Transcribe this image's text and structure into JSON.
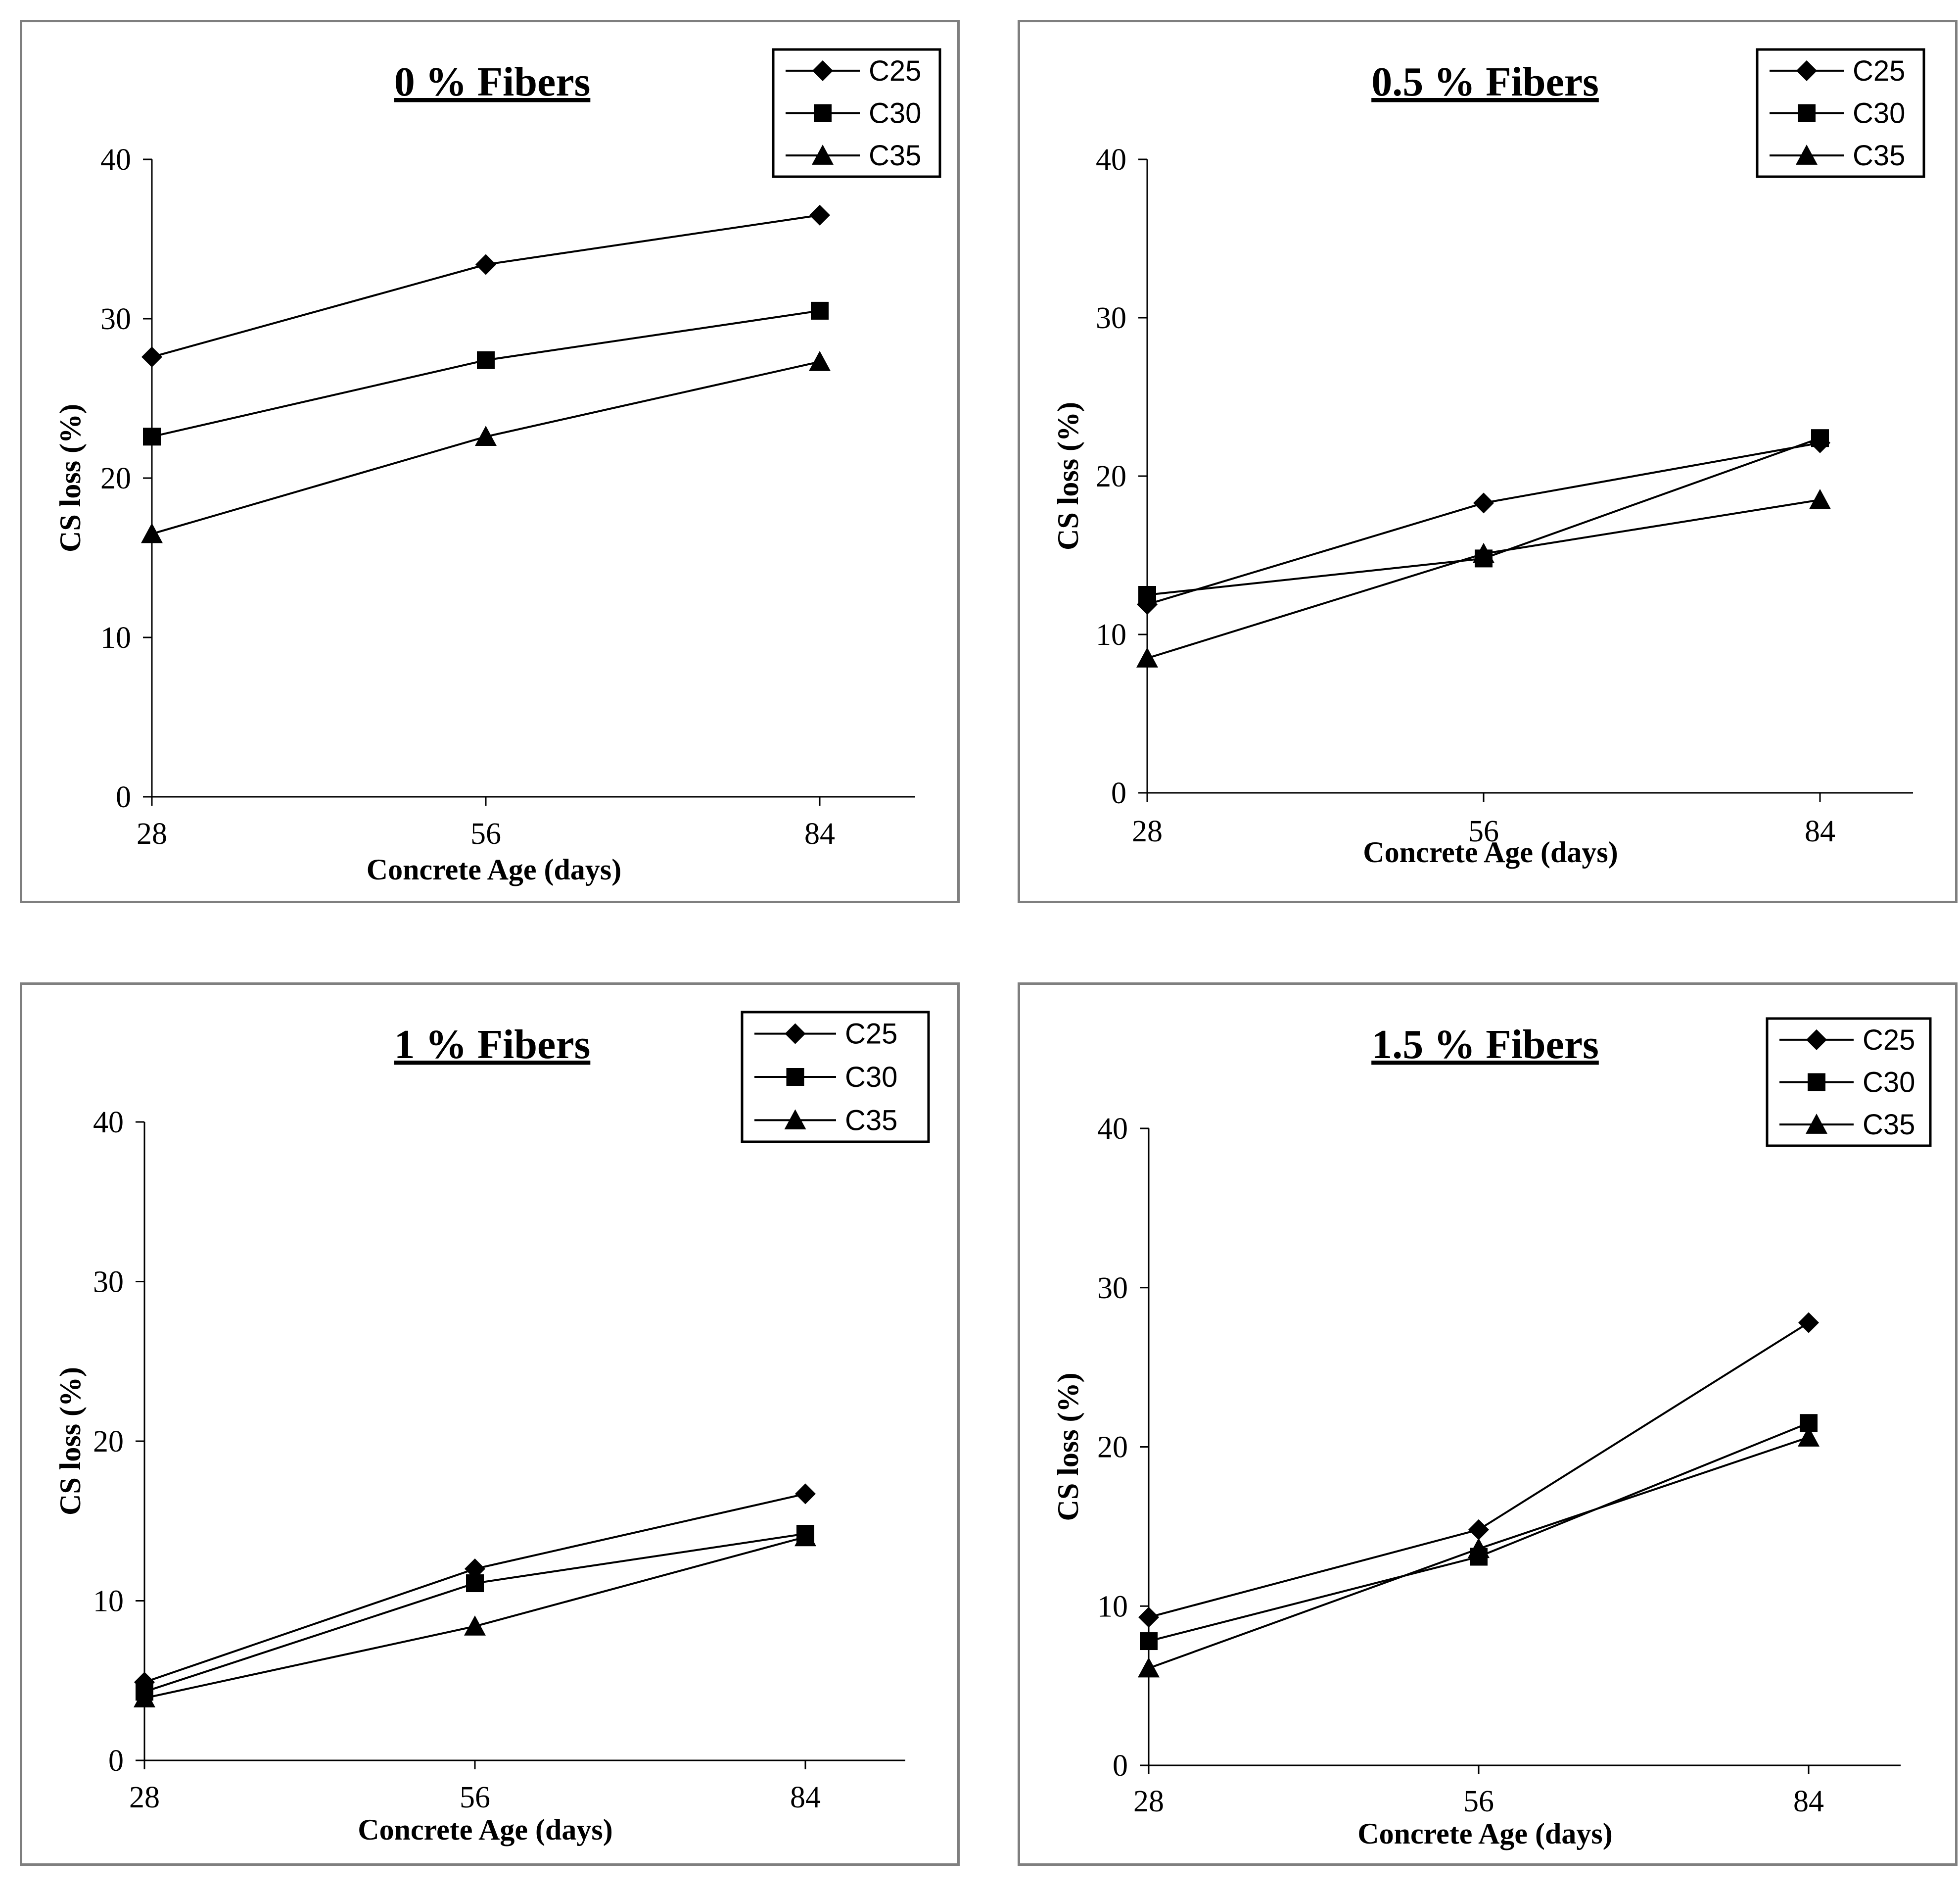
{
  "chart_data": [
    {
      "type": "line",
      "title": "0 % Fibers",
      "xlabel": "Concrete Age (days)",
      "ylabel": "CS loss (%)",
      "x": [
        28,
        56,
        84
      ],
      "xticks": [
        28,
        56,
        84
      ],
      "yticks": [
        0,
        10,
        20,
        30,
        40
      ],
      "ylim": [
        0,
        40
      ],
      "legend_position": "top-right",
      "series": [
        {
          "name": "C25",
          "marker": "diamond",
          "values": [
            27.6,
            33.4,
            36.5
          ]
        },
        {
          "name": "C30",
          "marker": "square",
          "values": [
            22.6,
            27.4,
            30.5
          ]
        },
        {
          "name": "C35",
          "marker": "triangle",
          "values": [
            16.5,
            22.6,
            27.3
          ]
        }
      ]
    },
    {
      "type": "line",
      "title": "0.5 % Fibers",
      "xlabel": "Concrete Age (days)",
      "ylabel": "CS loss (%)",
      "x": [
        28,
        56,
        84
      ],
      "xticks": [
        28,
        56,
        84
      ],
      "yticks": [
        0,
        10,
        20,
        30,
        40
      ],
      "ylim": [
        0,
        40
      ],
      "legend_position": "top-right",
      "series": [
        {
          "name": "C25",
          "marker": "diamond",
          "values": [
            11.9,
            18.3,
            22.1
          ]
        },
        {
          "name": "C30",
          "marker": "square",
          "values": [
            12.5,
            14.8,
            22.4
          ]
        },
        {
          "name": "C35",
          "marker": "triangle",
          "values": [
            8.5,
            15.1,
            18.5
          ]
        }
      ]
    },
    {
      "type": "line",
      "title": "1 % Fibers",
      "xlabel": "Concrete Age (days)",
      "ylabel": "CS loss (%)",
      "x": [
        28,
        56,
        84
      ],
      "xticks": [
        28,
        56,
        84
      ],
      "yticks": [
        0,
        10,
        20,
        30,
        40
      ],
      "ylim": [
        0,
        40
      ],
      "legend_position": "top-right",
      "series": [
        {
          "name": "C25",
          "marker": "diamond",
          "values": [
            4.9,
            12.0,
            16.7
          ]
        },
        {
          "name": "C30",
          "marker": "square",
          "values": [
            4.3,
            11.1,
            14.2
          ]
        },
        {
          "name": "C35",
          "marker": "triangle",
          "values": [
            3.9,
            8.4,
            14.0
          ]
        }
      ]
    },
    {
      "type": "line",
      "title": "1.5 % Fibers",
      "xlabel": "Concrete Age (days)",
      "ylabel": "CS loss (%)",
      "x": [
        28,
        56,
        84
      ],
      "xticks": [
        28,
        56,
        84
      ],
      "yticks": [
        0,
        10,
        20,
        30,
        40
      ],
      "ylim": [
        0,
        40
      ],
      "legend_position": "top-right",
      "series": [
        {
          "name": "C25",
          "marker": "diamond",
          "values": [
            9.3,
            14.8,
            27.8
          ]
        },
        {
          "name": "C30",
          "marker": "square",
          "values": [
            7.8,
            13.1,
            21.5
          ]
        },
        {
          "name": "C35",
          "marker": "triangle",
          "values": [
            6.1,
            13.6,
            20.6
          ]
        }
      ]
    }
  ]
}
